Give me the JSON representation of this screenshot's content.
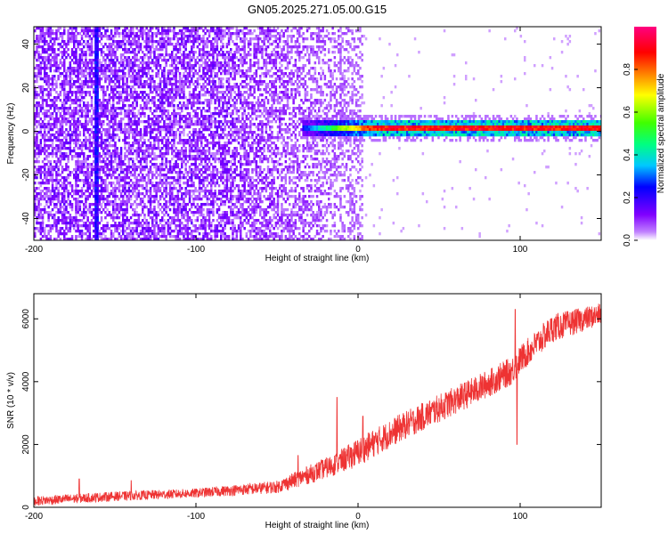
{
  "figure": {
    "title": "GN05.2025.271.05.00.G15"
  },
  "chart_data": [
    {
      "type": "heatmap",
      "xlabel": "Height of straight line (km)",
      "ylabel": "Frequency (Hz)",
      "xlim": [
        -200,
        150
      ],
      "ylim": [
        -50,
        48
      ],
      "xticks": [
        -200,
        -100,
        0,
        100
      ],
      "yticks": [
        -40,
        -20,
        0,
        20,
        40
      ],
      "colorbar": {
        "label": "Normalized spectral amplitude",
        "range": [
          0,
          1
        ],
        "ticks": [
          "0.0",
          "0.2",
          "0.4",
          "0.6",
          "0.8"
        ],
        "colors": [
          "#ffffff",
          "#8000ff",
          "#0000ff",
          "#00c8ff",
          "#00ff80",
          "#40ff00",
          "#ffff00",
          "#ff8000",
          "#ff0000",
          "#ff0080"
        ]
      },
      "features": {
        "noise_region_x": [
          -200,
          2
        ],
        "vertical_streak_x": -162,
        "signal_band_x": [
          -35,
          150
        ],
        "signal_band_freq_hz": 2,
        "peak_amplitude": 0.95
      }
    },
    {
      "type": "line",
      "xlabel": "Height of straight line (km)",
      "ylabel": "SNR (10 * v/v)",
      "xlim": [
        -200,
        150
      ],
      "ylim": [
        0,
        6800
      ],
      "xticks": [
        -200,
        -100,
        0,
        100
      ],
      "yticks": [
        0,
        2000,
        4000,
        6000
      ],
      "series": [
        {
          "color": "#ee3333",
          "x": [
            -200,
            -150,
            -100,
            -50,
            -30,
            -15,
            0,
            25,
            50,
            75,
            95,
            100,
            120,
            150
          ],
          "y": [
            200,
            350,
            450,
            650,
            1050,
            1350,
            1750,
            2500,
            3150,
            3800,
            4350,
            4700,
            5700,
            6150
          ],
          "noise_amplitude": [
            150,
            150,
            150,
            200,
            300,
            350,
            450,
            450,
            450,
            450,
            450,
            450,
            450,
            350
          ],
          "spikes": [
            {
              "x": -172,
              "y": 900
            },
            {
              "x": -140,
              "y": 850
            },
            {
              "x": -37,
              "y": 1650
            },
            {
              "x": -13,
              "y": 3500
            },
            {
              "x": 3,
              "y": 2900
            },
            {
              "x": 97,
              "y": 6300
            },
            {
              "x": 98,
              "y": 2000
            }
          ]
        }
      ]
    }
  ]
}
